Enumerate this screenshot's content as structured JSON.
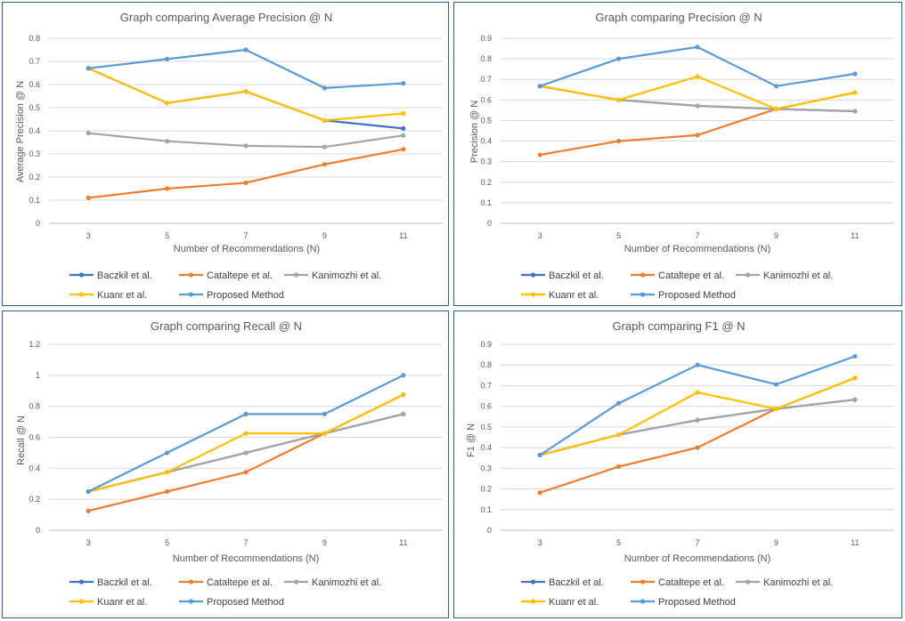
{
  "chart_data": [
    {
      "type": "line",
      "title": "Graph comparing Average Precision @ N",
      "xlabel": "Number of Recommendations (N)",
      "ylabel": "Average Precision @ N",
      "categories": [
        "3",
        "5",
        "7",
        "9",
        "11"
      ],
      "ylim": [
        0,
        0.8
      ],
      "yticks": [
        "0",
        "0.1",
        "0.2",
        "0.3",
        "0.4",
        "0.5",
        "0.6",
        "0.7",
        "0.8"
      ],
      "series": [
        {
          "name": "Baczkil et al.",
          "color": "#4472c4",
          "values": [
            0.67,
            0.52,
            0.57,
            0.445,
            0.41
          ]
        },
        {
          "name": "Cataltepe et al.",
          "color": "#ed7d31",
          "values": [
            0.11,
            0.15,
            0.175,
            0.255,
            0.32
          ]
        },
        {
          "name": "Kanimozhi et al.",
          "color": "#a5a5a5",
          "values": [
            0.39,
            0.355,
            0.335,
            0.33,
            0.38
          ]
        },
        {
          "name": "Kuanr et al.",
          "color": "#ffc000",
          "values": [
            0.67,
            0.52,
            0.57,
            0.445,
            0.475
          ]
        },
        {
          "name": "Proposed Method",
          "color": "#5b9bd5",
          "values": [
            0.67,
            0.71,
            0.75,
            0.585,
            0.605
          ]
        }
      ]
    },
    {
      "type": "line",
      "title": "Graph comparing Precision @ N",
      "xlabel": "Number of Recommendations (N)",
      "ylabel": "Precision @ N",
      "categories": [
        "3",
        "5",
        "7",
        "9",
        "11"
      ],
      "ylim": [
        0,
        0.9
      ],
      "yticks": [
        "0",
        "0.1",
        "0.2",
        "0.3",
        "0.4",
        "0.5",
        "0.6",
        "0.7",
        "0.8",
        "0.9"
      ],
      "series": [
        {
          "name": "Baczkil et al.",
          "color": "#4472c4",
          "values": [
            0.667,
            0.6,
            0.571,
            0.556,
            0.545
          ]
        },
        {
          "name": "Cataltepe et al.",
          "color": "#ed7d31",
          "values": [
            0.333,
            0.4,
            0.429,
            0.556,
            0.636
          ]
        },
        {
          "name": "Kanimozhi et al.",
          "color": "#a5a5a5",
          "values": [
            0.667,
            0.6,
            0.571,
            0.556,
            0.545
          ]
        },
        {
          "name": "Kuanr et al.",
          "color": "#ffc000",
          "values": [
            0.667,
            0.6,
            0.714,
            0.556,
            0.636
          ]
        },
        {
          "name": "Proposed Method",
          "color": "#5b9bd5",
          "values": [
            0.667,
            0.8,
            0.857,
            0.667,
            0.727
          ]
        }
      ]
    },
    {
      "type": "line",
      "title": "Graph comparing Recall @ N",
      "xlabel": "Number of Recommendations (N)",
      "ylabel": "Recall @ N",
      "categories": [
        "3",
        "5",
        "7",
        "9",
        "11"
      ],
      "ylim": [
        0,
        1.2
      ],
      "yticks": [
        "0",
        "0.2",
        "0.4",
        "0.6",
        "0.8",
        "1",
        "1.2"
      ],
      "series": [
        {
          "name": "Baczkil et al.",
          "color": "#4472c4",
          "values": [
            0.25,
            0.375,
            0.5,
            0.625,
            0.75
          ]
        },
        {
          "name": "Cataltepe et al.",
          "color": "#ed7d31",
          "values": [
            0.125,
            0.25,
            0.375,
            0.625,
            0.875
          ]
        },
        {
          "name": "Kanimozhi et al.",
          "color": "#a5a5a5",
          "values": [
            0.25,
            0.375,
            0.5,
            0.625,
            0.75
          ]
        },
        {
          "name": "Kuanr et al.",
          "color": "#ffc000",
          "values": [
            0.25,
            0.375,
            0.625,
            0.625,
            0.875
          ]
        },
        {
          "name": "Proposed Method",
          "color": "#5b9bd5",
          "values": [
            0.25,
            0.5,
            0.75,
            0.75,
            1.0
          ]
        }
      ]
    },
    {
      "type": "line",
      "title": "Graph comparing F1 @ N",
      "xlabel": "Number of Recommendations (N)",
      "ylabel": "F1 @ N",
      "categories": [
        "3",
        "5",
        "7",
        "9",
        "11"
      ],
      "ylim": [
        0,
        0.9
      ],
      "yticks": [
        "0",
        "0.1",
        "0.2",
        "0.3",
        "0.4",
        "0.5",
        "0.6",
        "0.7",
        "0.8",
        "0.9"
      ],
      "series": [
        {
          "name": "Baczkil et al.",
          "color": "#4472c4",
          "values": [
            0.364,
            0.462,
            0.533,
            0.588,
            0.632
          ]
        },
        {
          "name": "Cataltepe et al.",
          "color": "#ed7d31",
          "values": [
            0.182,
            0.308,
            0.4,
            0.588,
            0.737
          ]
        },
        {
          "name": "Kanimozhi et al.",
          "color": "#a5a5a5",
          "values": [
            0.364,
            0.462,
            0.533,
            0.588,
            0.632
          ]
        },
        {
          "name": "Kuanr et al.",
          "color": "#ffc000",
          "values": [
            0.364,
            0.462,
            0.667,
            0.588,
            0.737
          ]
        },
        {
          "name": "Proposed Method",
          "color": "#5b9bd5",
          "values": [
            0.364,
            0.615,
            0.8,
            0.706,
            0.842
          ]
        }
      ]
    }
  ]
}
